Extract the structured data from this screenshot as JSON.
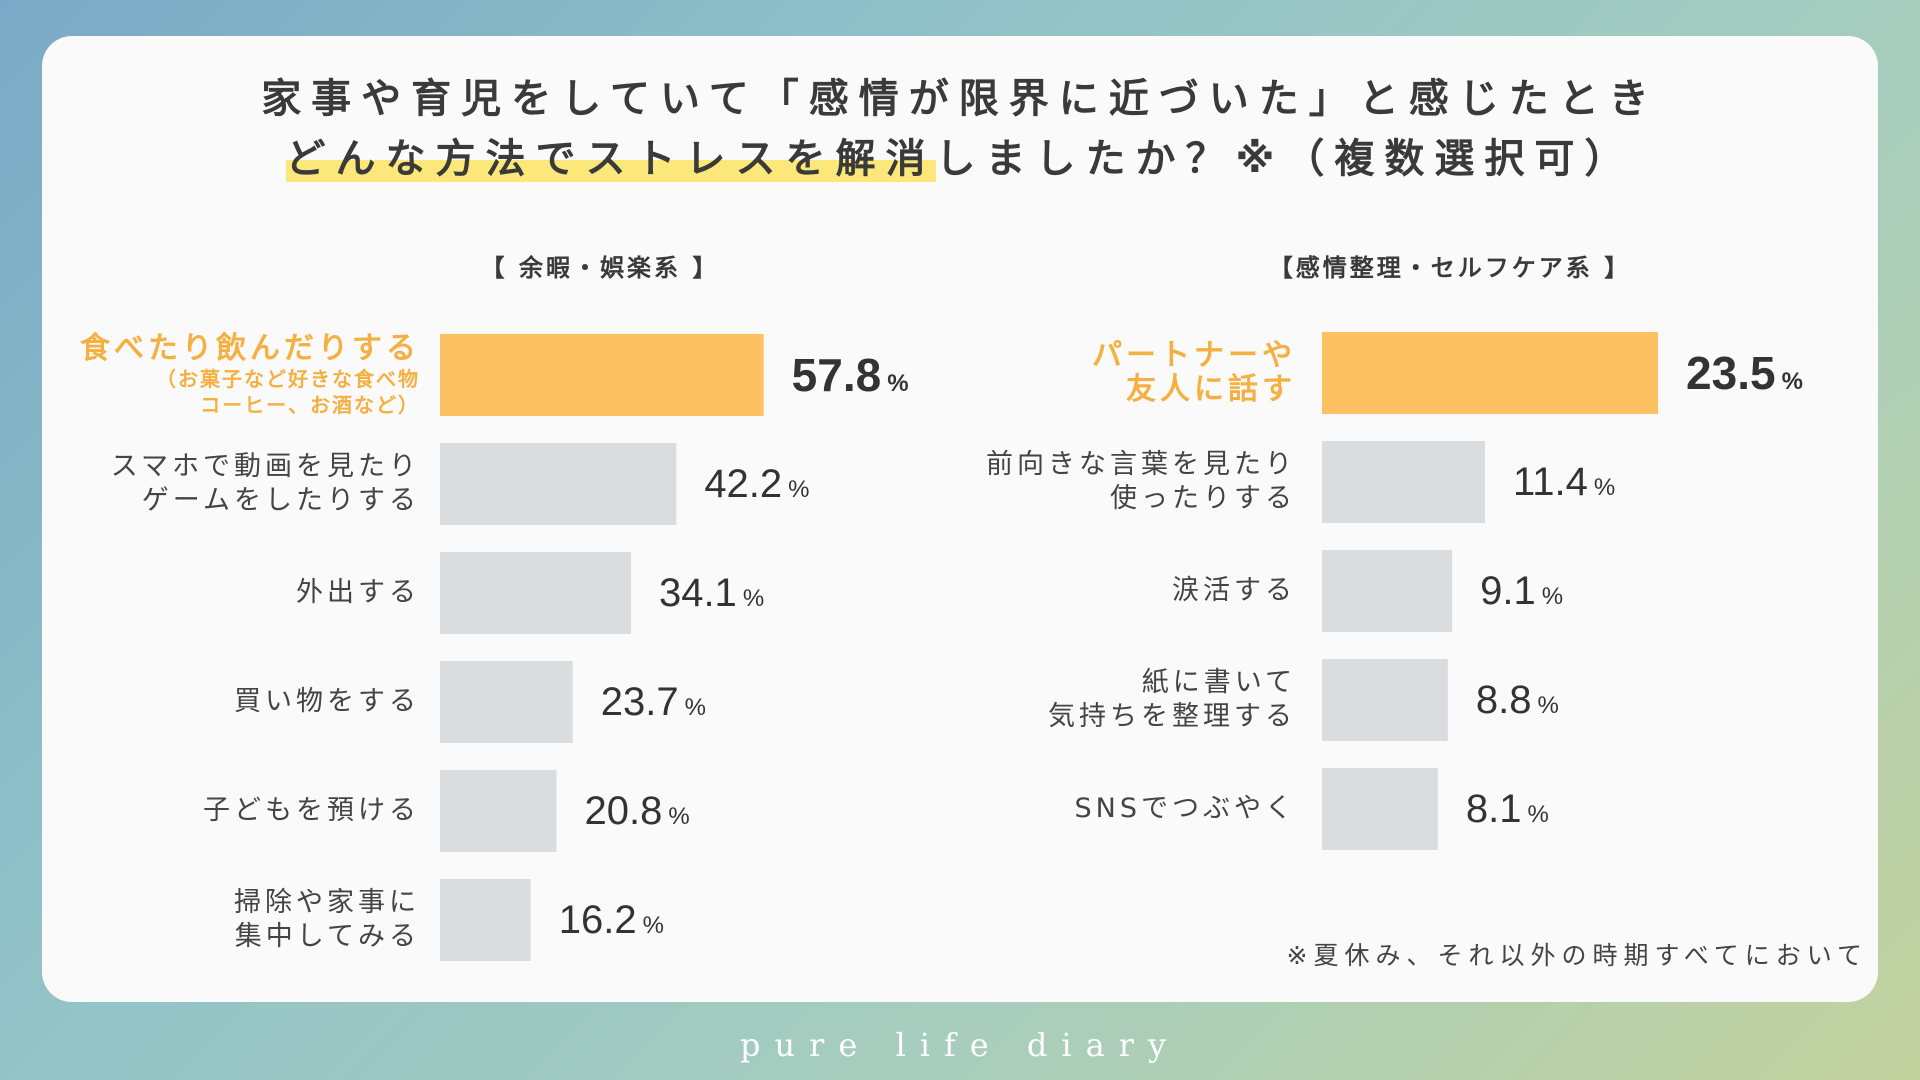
{
  "title": {
    "line1": "家事や育児をしていて「感情が限界に近づいた」と感じたとき",
    "line2_highlight": "どんな方法でストレスを解消",
    "line2_rest": "しましたか？※（複数選択可）"
  },
  "footnote": "※夏休み、それ以外の時期すべてにおいて",
  "brand": "pure life diary",
  "chart_data": [
    {
      "type": "bar",
      "orientation": "horizontal",
      "title": "【 余暇・娯楽系 】",
      "unit": "%",
      "categories": [
        "食べたり飲んだりする（お菓子など好きな食べ物コーヒー、お酒など）",
        "スマホで動画を見たりゲームをしたりする",
        "外出する",
        "買い物をする",
        "子どもを預ける",
        "掃除や家事に集中してみる"
      ],
      "label_lines": [
        [
          "食べたり飲んだりする",
          "（お菓子など好きな食べ物",
          "コーヒー、お酒など）"
        ],
        [
          "スマホで動画を見たり",
          "ゲームをしたりする"
        ],
        [
          "外出する"
        ],
        [
          "買い物をする"
        ],
        [
          "子どもを預ける"
        ],
        [
          "掃除や家事に",
          "集中してみる"
        ]
      ],
      "values": [
        57.8,
        42.2,
        34.1,
        23.7,
        20.8,
        16.2
      ],
      "value_labels": [
        "57.8",
        "42.2",
        "34.1",
        "23.7",
        "20.8",
        "16.2"
      ],
      "highlight_index": 0
    },
    {
      "type": "bar",
      "orientation": "horizontal",
      "title": "【感情整理・セルフケア系 】",
      "unit": "%",
      "categories": [
        "パートナーや友人に話す",
        "前向きな言葉を見たり使ったりする",
        "涙活する",
        "紙に書いて気持ちを整理する",
        "SNSでつぶやく"
      ],
      "label_lines": [
        [
          "パートナーや",
          "友人に話す"
        ],
        [
          "前向きな言葉を見たり",
          "使ったりする"
        ],
        [
          "涙活する"
        ],
        [
          "紙に書いて",
          "気持ちを整理する"
        ],
        [
          "SNSでつぶやく"
        ]
      ],
      "values": [
        23.5,
        11.4,
        9.1,
        8.8,
        8.1
      ],
      "value_labels": [
        "23.5",
        "11.4",
        "9.1",
        "8.8",
        "8.1"
      ],
      "highlight_index": 0
    }
  ],
  "colors": {
    "highlight_bar": "#fdc062",
    "bar": "#dadde0",
    "highlight_text": "#f5b042",
    "title_marker": "#fce77b"
  }
}
